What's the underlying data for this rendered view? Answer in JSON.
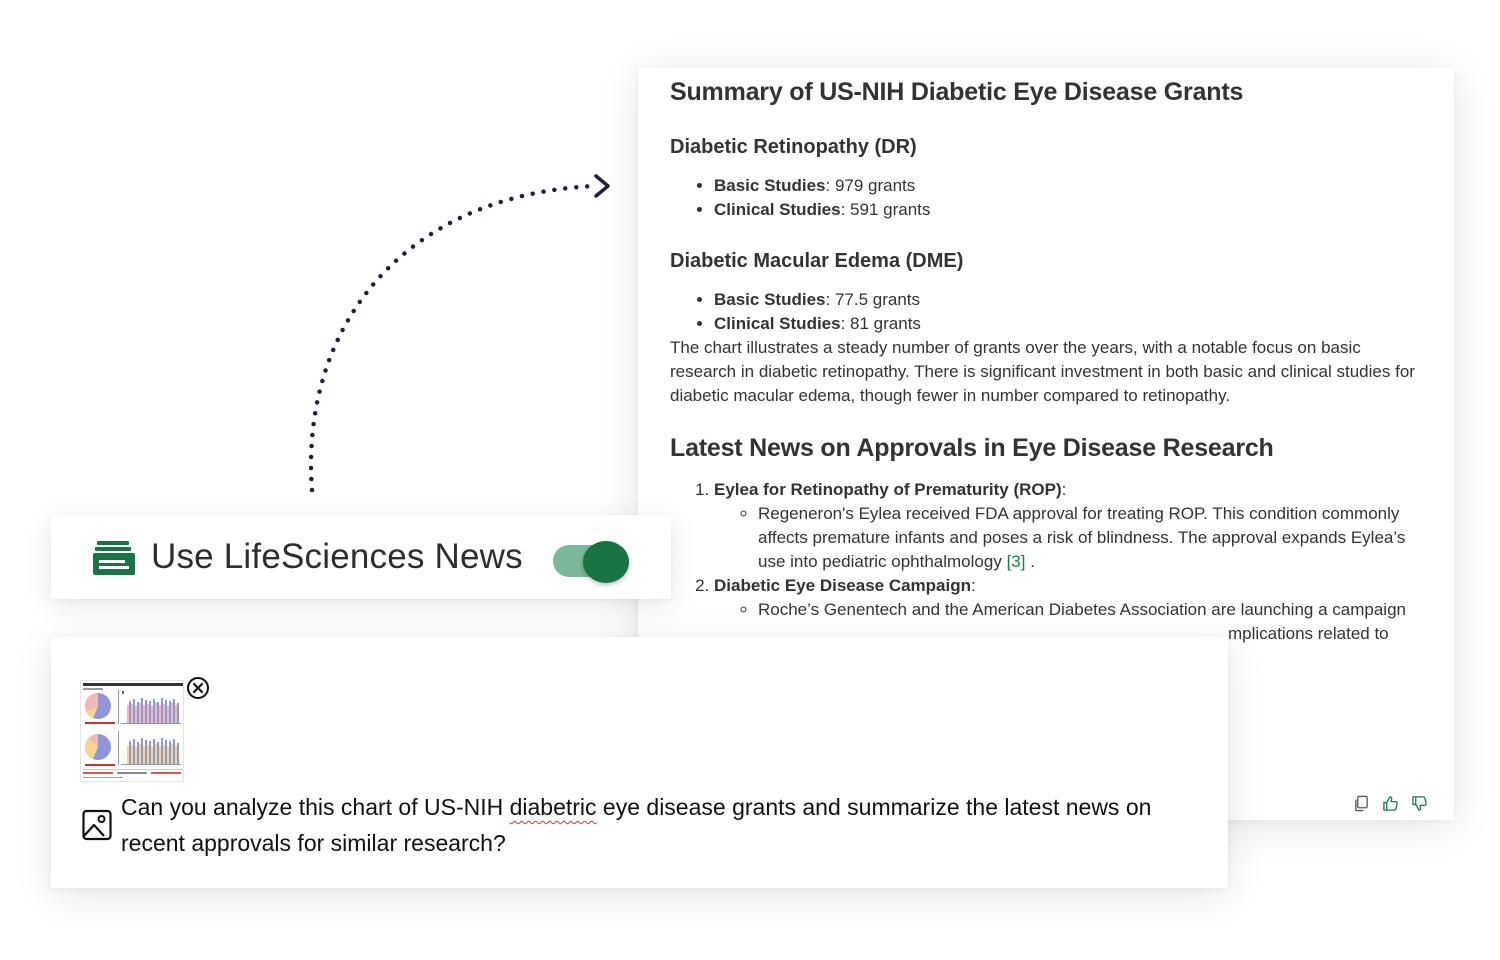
{
  "response": {
    "title": "Summary of US-NIH Diabetic Eye Disease Grants",
    "dr": {
      "heading": "Diabetic Retinopathy (DR)",
      "items": [
        {
          "label": "Basic Studies",
          "value": ": 979 grants"
        },
        {
          "label": "Clinical Studies",
          "value": ": 591 grants"
        }
      ]
    },
    "dme": {
      "heading": "Diabetic Macular Edema (DME)",
      "items": [
        {
          "label": "Basic Studies",
          "value": ": 77.5 grants"
        },
        {
          "label": "Clinical Studies",
          "value": ": 81 grants"
        }
      ]
    },
    "paragraph": "The chart illustrates a steady number of grants over the years, with a notable focus on basic research in diabetic retinopathy. There is significant investment in both basic and clinical studies for diabetic macular edema, though fewer in number compared to retinopathy.",
    "news_heading": "Latest News on Approvals in Eye Disease Research",
    "news": [
      {
        "title": "Eylea for Retinopathy of Prematurity (ROP)",
        "suffix": ":",
        "detail": "Regeneron's Eylea received FDA approval for treating ROP. This condition commonly affects premature infants and poses a risk of blindness. The approval expands Eylea’s use into pediatric ophthalmology",
        "citation": "[3]",
        "end": " ."
      },
      {
        "title": "Diabetic Eye Disease Campaign",
        "suffix": ":",
        "detail": "Roche’s Genentech and the American Diabetes Association are launching a campaign",
        "detail_cont": "mplications related to"
      }
    ],
    "actions": {
      "copy": "copy-icon",
      "like": "thumbs-up-icon",
      "dislike": "thumbs-down-icon"
    }
  },
  "toggle": {
    "label": "Use LifeSciences News",
    "state": true,
    "accent": "#187443",
    "track": "#7bb89a"
  },
  "input": {
    "prompt_before": "Can you analyze this chart of US-NIH ",
    "prompt_misspelled": "diabetric",
    "prompt_after": " eye disease grants and summarize the latest news on recent approvals for similar research?",
    "attachment_icon": "chart-thumbnail",
    "remove_icon": "close-circle-icon",
    "image_icon": "image-icon"
  }
}
